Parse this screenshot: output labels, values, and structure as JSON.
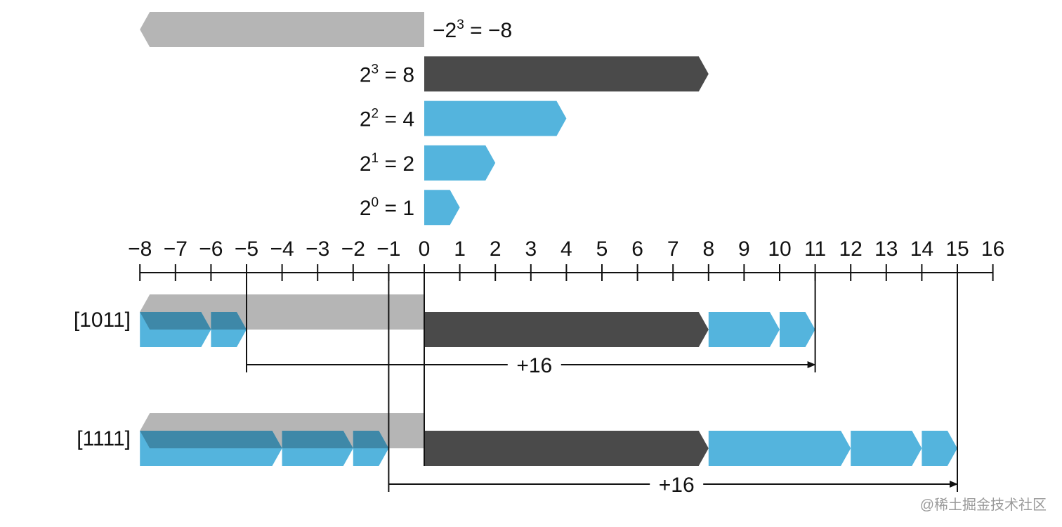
{
  "weights": [
    {
      "base": "−2",
      "exp": "3",
      "rest": " = −8",
      "value": -8,
      "style": "gray"
    },
    {
      "base": "2",
      "exp": "3",
      "rest": " = 8",
      "value": 8,
      "style": "dark"
    },
    {
      "base": "2",
      "exp": "2",
      "rest": " = 4",
      "value": 4,
      "style": "blue"
    },
    {
      "base": "2",
      "exp": "1",
      "rest": " = 2",
      "value": 2,
      "style": "blue"
    },
    {
      "base": "2",
      "exp": "0",
      "rest": " = 1",
      "value": 1,
      "style": "blue"
    }
  ],
  "axis": {
    "min": -8,
    "max": 16,
    "ticks": [
      "−8",
      "−7",
      "−6",
      "−5",
      "−4",
      "−3",
      "−2",
      "−1",
      "0",
      "1",
      "2",
      "3",
      "4",
      "5",
      "6",
      "7",
      "8",
      "9",
      "10",
      "11",
      "12",
      "13",
      "14",
      "15",
      "16"
    ]
  },
  "examples": [
    {
      "label": "[1011]",
      "signed_value": -5,
      "unsigned_value": 11,
      "negative_pieces": [
        [
          -8,
          -6
        ],
        [
          -6,
          -5
        ]
      ],
      "positive_pieces": [
        [
          0,
          8
        ],
        [
          8,
          10
        ],
        [
          10,
          11
        ]
      ],
      "delta_label": "+16"
    },
    {
      "label": "[1111]",
      "signed_value": -1,
      "unsigned_value": 15,
      "negative_pieces": [
        [
          -8,
          -4
        ],
        [
          -4,
          -2
        ],
        [
          -2,
          -1
        ]
      ],
      "positive_pieces": [
        [
          0,
          8
        ],
        [
          8,
          12
        ],
        [
          12,
          14
        ],
        [
          14,
          15
        ]
      ],
      "delta_label": "+16"
    }
  ],
  "colors": {
    "gray": "#b5b5b5",
    "dark": "#4a4a4a",
    "blue": "#54b4dd",
    "overlap": "#3e88a8",
    "line": "#111111"
  },
  "watermark": "@稀土掘金技术社区"
}
